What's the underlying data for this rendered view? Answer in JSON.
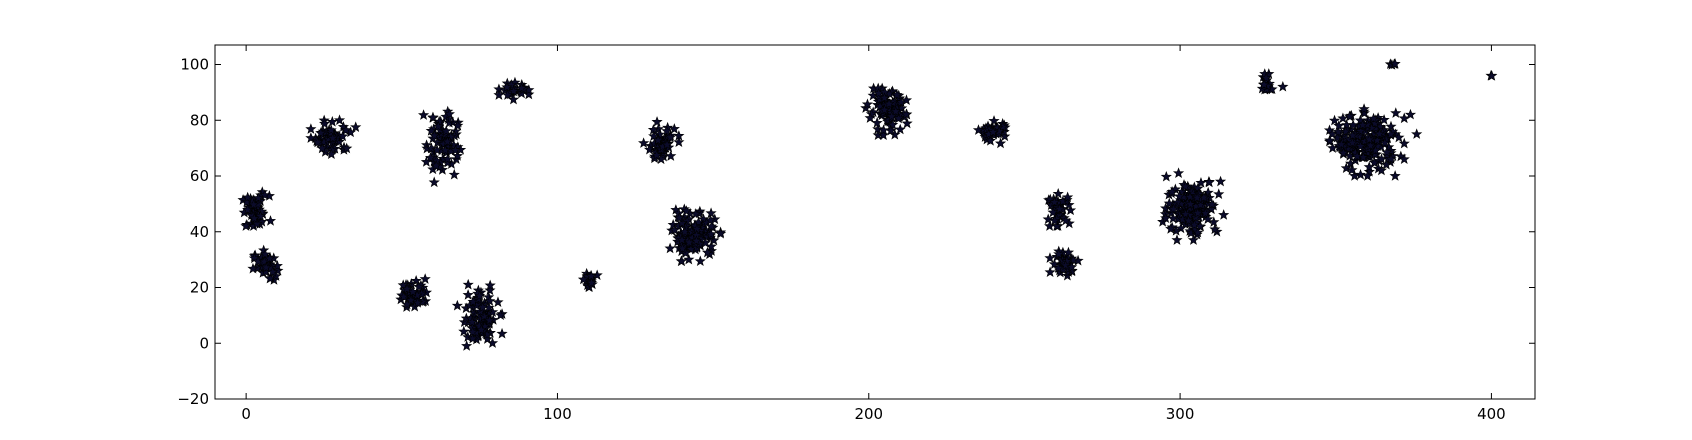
{
  "chart_data": {
    "type": "scatter",
    "title": "",
    "xlabel": "",
    "ylabel": "",
    "xlim": [
      -10,
      414
    ],
    "ylim": [
      -20,
      107
    ],
    "xticks": [
      0,
      100,
      200,
      300,
      400
    ],
    "yticks": [
      -20,
      0,
      20,
      40,
      60,
      80,
      100
    ],
    "grid": false,
    "marker": "star",
    "colors": {
      "marker_fill": "#0b0b2a",
      "marker_edge": "#000000",
      "axes": "#000000"
    },
    "clusters": [
      {
        "x": 3,
        "y": 47,
        "spread_x": 2.2,
        "spread_y": 3,
        "n": 60
      },
      {
        "x": 6,
        "y": 28,
        "spread_x": 1.8,
        "spread_y": 2.5,
        "n": 40
      },
      {
        "x": 28,
        "y": 74,
        "spread_x": 3,
        "spread_y": 3,
        "n": 55
      },
      {
        "x": 54,
        "y": 18,
        "spread_x": 2.5,
        "spread_y": 2.5,
        "n": 45
      },
      {
        "x": 63,
        "y": 72,
        "spread_x": 2.5,
        "spread_y": 6,
        "n": 80
      },
      {
        "x": 75,
        "y": 9,
        "spread_x": 3,
        "spread_y": 5,
        "n": 90
      },
      {
        "x": 86,
        "y": 91,
        "spread_x": 2,
        "spread_y": 1.5,
        "n": 25
      },
      {
        "x": 110,
        "y": 23,
        "spread_x": 1.2,
        "spread_y": 1.2,
        "n": 20
      },
      {
        "x": 133,
        "y": 71,
        "spread_x": 2.5,
        "spread_y": 3.5,
        "n": 55
      },
      {
        "x": 144,
        "y": 39,
        "spread_x": 3.5,
        "spread_y": 4,
        "n": 120
      },
      {
        "x": 206,
        "y": 83,
        "spread_x": 3,
        "spread_y": 3.5,
        "n": 100
      },
      {
        "x": 240,
        "y": 76,
        "spread_x": 2.2,
        "spread_y": 1.8,
        "n": 45
      },
      {
        "x": 261,
        "y": 48,
        "spread_x": 1.8,
        "spread_y": 2.5,
        "n": 40
      },
      {
        "x": 263,
        "y": 29,
        "spread_x": 2,
        "spread_y": 2,
        "n": 45
      },
      {
        "x": 304,
        "y": 49,
        "spread_x": 4,
        "spread_y": 5,
        "n": 150
      },
      {
        "x": 328,
        "y": 93,
        "spread_x": 1.5,
        "spread_y": 1.5,
        "n": 20
      },
      {
        "x": 360,
        "y": 72,
        "spread_x": 5,
        "spread_y": 5,
        "n": 200
      },
      {
        "x": 368,
        "y": 100,
        "spread_x": 0.8,
        "spread_y": 0.1,
        "n": 4
      },
      {
        "x": 400,
        "y": 96,
        "spread_x": 0.2,
        "spread_y": 0.2,
        "n": 2
      }
    ],
    "outliers": [
      {
        "x": 297,
        "y": 41
      },
      {
        "x": 299,
        "y": 37
      },
      {
        "x": 313,
        "y": 58
      },
      {
        "x": 314,
        "y": 46
      },
      {
        "x": 333,
        "y": 92
      },
      {
        "x": 349,
        "y": 70
      },
      {
        "x": 351,
        "y": 78
      },
      {
        "x": 372,
        "y": 66
      },
      {
        "x": 376,
        "y": 75
      },
      {
        "x": 374,
        "y": 82
      },
      {
        "x": 140,
        "y": 37
      },
      {
        "x": 84,
        "y": 89
      },
      {
        "x": 75,
        "y": 17
      },
      {
        "x": 60,
        "y": 81
      },
      {
        "x": 30,
        "y": 80
      },
      {
        "x": 23,
        "y": 72
      }
    ]
  }
}
